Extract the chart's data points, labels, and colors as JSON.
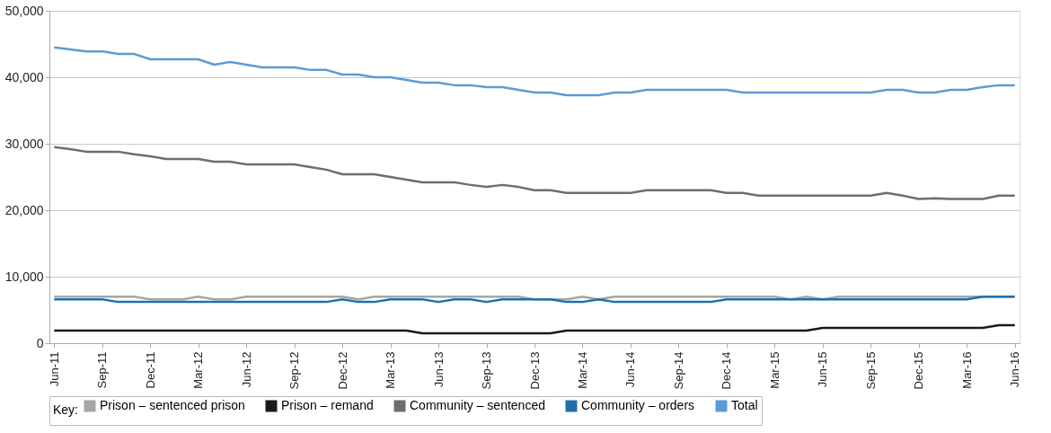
{
  "chart_data": {
    "type": "line",
    "categories": [
      "Jun-11",
      null,
      null,
      "Sep-11",
      null,
      null,
      "Dec-11",
      null,
      null,
      "Mar-12",
      null,
      null,
      "Jun-12",
      null,
      null,
      "Sep-12",
      null,
      null,
      "Dec-12",
      null,
      null,
      "Mar-13",
      null,
      null,
      "Jun-13",
      null,
      null,
      "Sep-13",
      null,
      null,
      "Dec-13",
      null,
      null,
      "Mar-14",
      null,
      null,
      "Jun-14",
      null,
      null,
      "Sep-14",
      null,
      null,
      "Dec-14",
      null,
      null,
      "Mar-15",
      null,
      null,
      "Jun-15",
      null,
      null,
      "Sep-15",
      null,
      null,
      "Dec-15",
      null,
      null,
      "Mar-16",
      null,
      null,
      "Jun-16"
    ],
    "legend_title": "Key:",
    "series": [
      {
        "name": "Prison – sentenced prison",
        "color": "#a6a6a6",
        "values": [
          7000,
          7000,
          7000,
          7000,
          7000,
          7000,
          6600,
          6600,
          6600,
          7000,
          6600,
          6600,
          7000,
          7000,
          7000,
          7000,
          7000,
          7000,
          7000,
          6600,
          7000,
          7000,
          7000,
          7000,
          7000,
          7000,
          7000,
          7000,
          7000,
          7000,
          6600,
          6600,
          6600,
          7000,
          6600,
          7000,
          7000,
          7000,
          7000,
          7000,
          7000,
          7000,
          7000,
          7000,
          7000,
          7000,
          6600,
          7000,
          6600,
          7000,
          7000,
          7000,
          7000,
          7000,
          7000,
          7000,
          7000,
          7000,
          7000,
          7000,
          7000
        ]
      },
      {
        "name": "Prison – remand",
        "color": "#1a1a1a",
        "values": [
          1900,
          1900,
          1900,
          1900,
          1900,
          1900,
          1900,
          1900,
          1900,
          1900,
          1900,
          1900,
          1900,
          1900,
          1900,
          1900,
          1900,
          1900,
          1900,
          1900,
          1900,
          1900,
          1900,
          1500,
          1500,
          1500,
          1500,
          1500,
          1500,
          1500,
          1500,
          1500,
          1900,
          1900,
          1900,
          1900,
          1900,
          1900,
          1900,
          1900,
          1900,
          1900,
          1900,
          1900,
          1900,
          1900,
          1900,
          1900,
          2300,
          2300,
          2300,
          2300,
          2300,
          2300,
          2300,
          2300,
          2300,
          2300,
          2300,
          2700,
          2700
        ]
      },
      {
        "name": "Community – sentenced",
        "color": "#6d6e71",
        "values": [
          29500,
          29200,
          28800,
          28800,
          28800,
          28400,
          28100,
          27700,
          27700,
          27700,
          27300,
          27300,
          26900,
          26900,
          26900,
          26900,
          26500,
          26100,
          25400,
          25400,
          25400,
          25000,
          24600,
          24200,
          24200,
          24200,
          23800,
          23500,
          23800,
          23500,
          23000,
          23000,
          22600,
          22600,
          22600,
          22600,
          22600,
          23000,
          23000,
          23000,
          23000,
          23000,
          22600,
          22600,
          22200,
          22200,
          22200,
          22200,
          22200,
          22200,
          22200,
          22200,
          22600,
          22200,
          21700,
          21800,
          21700,
          21700,
          21700,
          22200,
          22200
        ]
      },
      {
        "name": "Community – orders",
        "color": "#1f6fad",
        "values": [
          6600,
          6600,
          6600,
          6600,
          6200,
          6200,
          6200,
          6200,
          6200,
          6200,
          6200,
          6200,
          6200,
          6200,
          6200,
          6200,
          6200,
          6200,
          6600,
          6200,
          6200,
          6600,
          6600,
          6600,
          6200,
          6600,
          6600,
          6200,
          6600,
          6600,
          6600,
          6600,
          6200,
          6200,
          6600,
          6200,
          6200,
          6200,
          6200,
          6200,
          6200,
          6200,
          6600,
          6600,
          6600,
          6600,
          6600,
          6600,
          6600,
          6600,
          6600,
          6600,
          6600,
          6600,
          6600,
          6600,
          6600,
          6600,
          7000,
          7000,
          7000
        ]
      },
      {
        "name": "Total",
        "color": "#5b9bd5",
        "values": [
          44500,
          44200,
          43900,
          43900,
          43500,
          43500,
          42700,
          42700,
          42700,
          42700,
          41900,
          42300,
          41900,
          41500,
          41500,
          41500,
          41100,
          41100,
          40400,
          40400,
          40000,
          40000,
          39600,
          39200,
          39200,
          38800,
          38800,
          38500,
          38500,
          38100,
          37700,
          37700,
          37300,
          37300,
          37300,
          37700,
          37700,
          38100,
          38100,
          38100,
          38100,
          38100,
          38100,
          37700,
          37700,
          37700,
          37700,
          37700,
          37700,
          37700,
          37700,
          37700,
          38100,
          38100,
          37700,
          37700,
          38100,
          38100,
          38500,
          38800,
          38800
        ]
      }
    ],
    "ylim": [
      0,
      50000
    ],
    "yticks": [
      0,
      {
        "value": 10000,
        "label": "10,000"
      },
      {
        "value": 20000,
        "label": "20,000"
      },
      {
        "value": 30000,
        "label": "30,000"
      },
      {
        "value": 40000,
        "label": "40,000"
      },
      {
        "value": 50000,
        "label": "50,000"
      }
    ],
    "grid": "y",
    "legend": "bottom",
    "marker": "none",
    "line_style": "solid"
  }
}
